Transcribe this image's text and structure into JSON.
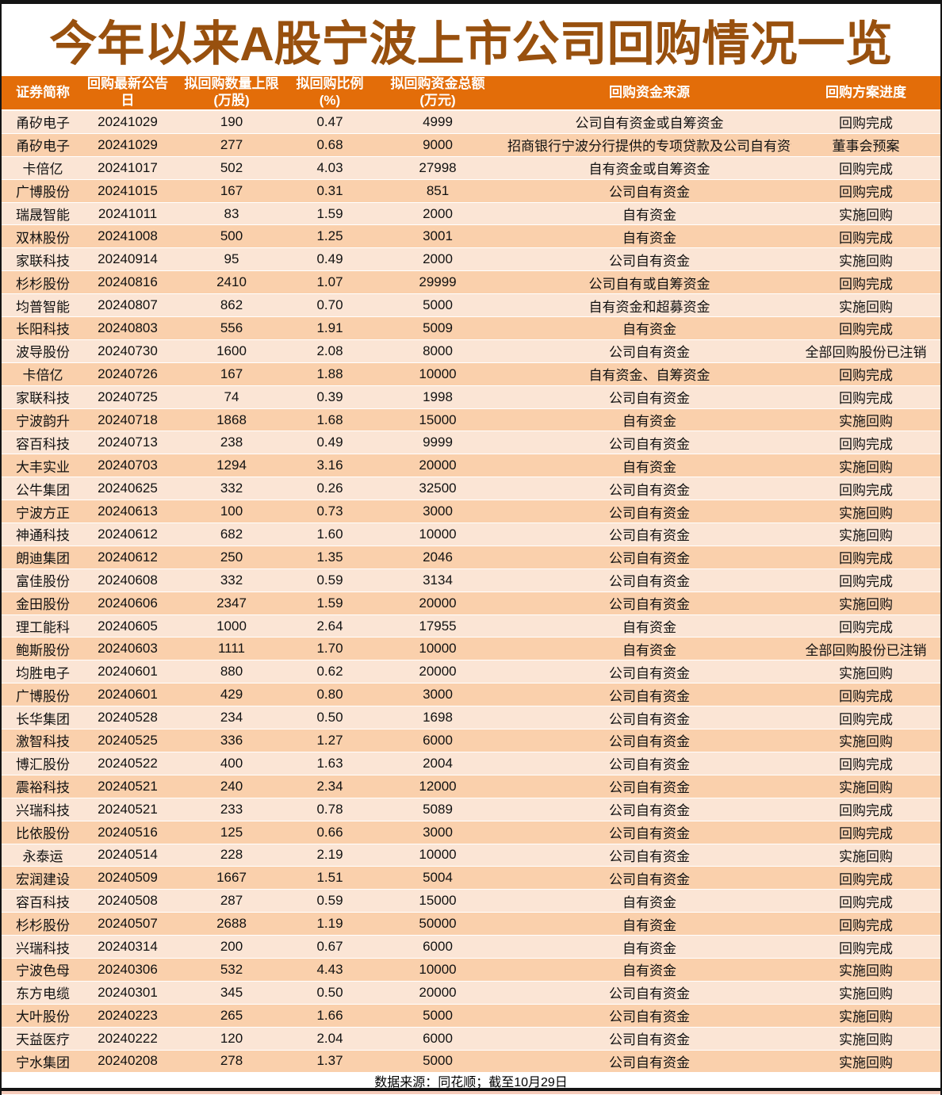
{
  "title": "今年以来A股宁波上市公司回购情况一览",
  "colors": {
    "title_text": "#98500E",
    "header_bg": "#E36D09",
    "header_text": "#FFFFFF",
    "row_light": "#FBE5D5",
    "row_dark": "#FAD0AC",
    "frame": "#141414"
  },
  "chart_data": {
    "type": "table",
    "title": "今年以来A股宁波上市公司回购情况一览",
    "columns": [
      {
        "label": "证券简称",
        "unit": ""
      },
      {
        "label": "回购最新公告日",
        "unit": ""
      },
      {
        "label": "拟回购数量上限",
        "unit": "(万股)"
      },
      {
        "label": "拟回购比例",
        "unit": "(%)"
      },
      {
        "label": "拟回购资金总额",
        "unit": "(万元)"
      },
      {
        "label": "回购资金来源",
        "unit": ""
      },
      {
        "label": "回购方案进度",
        "unit": ""
      }
    ],
    "rows": [
      {
        "name": "甬矽电子",
        "date": "20241029",
        "qty_limit_wan": 190,
        "ratio_pct": "0.47",
        "amount_wan": 4999,
        "source": "公司自有资金或自筹资金",
        "progress": "回购完成"
      },
      {
        "name": "甬矽电子",
        "date": "20241029",
        "qty_limit_wan": 277,
        "ratio_pct": "0.68",
        "amount_wan": 9000,
        "source": "招商银行宁波分行提供的专项贷款及公司自有资金",
        "progress": "董事会预案"
      },
      {
        "name": "卡倍亿",
        "date": "20241017",
        "qty_limit_wan": 502,
        "ratio_pct": "4.03",
        "amount_wan": 27998,
        "source": "自有资金或自筹资金",
        "progress": "回购完成"
      },
      {
        "name": "广博股份",
        "date": "20241015",
        "qty_limit_wan": 167,
        "ratio_pct": "0.31",
        "amount_wan": 851,
        "source": "公司自有资金",
        "progress": "回购完成"
      },
      {
        "name": "瑞晟智能",
        "date": "20241011",
        "qty_limit_wan": 83,
        "ratio_pct": "1.59",
        "amount_wan": 2000,
        "source": "自有资金",
        "progress": "实施回购"
      },
      {
        "name": "双林股份",
        "date": "20241008",
        "qty_limit_wan": 500,
        "ratio_pct": "1.25",
        "amount_wan": 3001,
        "source": "自有资金",
        "progress": "回购完成"
      },
      {
        "name": "家联科技",
        "date": "20240914",
        "qty_limit_wan": 95,
        "ratio_pct": "0.49",
        "amount_wan": 2000,
        "source": "公司自有资金",
        "progress": "实施回购"
      },
      {
        "name": "杉杉股份",
        "date": "20240816",
        "qty_limit_wan": 2410,
        "ratio_pct": "1.07",
        "amount_wan": 29999,
        "source": "公司自有或自筹资金",
        "progress": "回购完成"
      },
      {
        "name": "均普智能",
        "date": "20240807",
        "qty_limit_wan": 862,
        "ratio_pct": "0.70",
        "amount_wan": 5000,
        "source": "自有资金和超募资金",
        "progress": "实施回购"
      },
      {
        "name": "长阳科技",
        "date": "20240803",
        "qty_limit_wan": 556,
        "ratio_pct": "1.91",
        "amount_wan": 5009,
        "source": "自有资金",
        "progress": "回购完成"
      },
      {
        "name": "波导股份",
        "date": "20240730",
        "qty_limit_wan": 1600,
        "ratio_pct": "2.08",
        "amount_wan": 8000,
        "source": "公司自有资金",
        "progress": "全部回购股份已注销"
      },
      {
        "name": "卡倍亿",
        "date": "20240726",
        "qty_limit_wan": 167,
        "ratio_pct": "1.88",
        "amount_wan": 10000,
        "source": "自有资金、自筹资金",
        "progress": "回购完成"
      },
      {
        "name": "家联科技",
        "date": "20240725",
        "qty_limit_wan": 74,
        "ratio_pct": "0.39",
        "amount_wan": 1998,
        "source": "公司自有资金",
        "progress": "回购完成"
      },
      {
        "name": "宁波韵升",
        "date": "20240718",
        "qty_limit_wan": 1868,
        "ratio_pct": "1.68",
        "amount_wan": 15000,
        "source": "自有资金",
        "progress": "实施回购"
      },
      {
        "name": "容百科技",
        "date": "20240713",
        "qty_limit_wan": 238,
        "ratio_pct": "0.49",
        "amount_wan": 9999,
        "source": "公司自有资金",
        "progress": "回购完成"
      },
      {
        "name": "大丰实业",
        "date": "20240703",
        "qty_limit_wan": 1294,
        "ratio_pct": "3.16",
        "amount_wan": 20000,
        "source": "自有资金",
        "progress": "实施回购"
      },
      {
        "name": "公牛集团",
        "date": "20240625",
        "qty_limit_wan": 332,
        "ratio_pct": "0.26",
        "amount_wan": 32500,
        "source": "公司自有资金",
        "progress": "回购完成"
      },
      {
        "name": "宁波方正",
        "date": "20240613",
        "qty_limit_wan": 100,
        "ratio_pct": "0.73",
        "amount_wan": 3000,
        "source": "公司自有资金",
        "progress": "实施回购"
      },
      {
        "name": "神通科技",
        "date": "20240612",
        "qty_limit_wan": 682,
        "ratio_pct": "1.60",
        "amount_wan": 10000,
        "source": "公司自有资金",
        "progress": "实施回购"
      },
      {
        "name": "朗迪集团",
        "date": "20240612",
        "qty_limit_wan": 250,
        "ratio_pct": "1.35",
        "amount_wan": 2046,
        "source": "公司自有资金",
        "progress": "回购完成"
      },
      {
        "name": "富佳股份",
        "date": "20240608",
        "qty_limit_wan": 332,
        "ratio_pct": "0.59",
        "amount_wan": 3134,
        "source": "公司自有资金",
        "progress": "回购完成"
      },
      {
        "name": "金田股份",
        "date": "20240606",
        "qty_limit_wan": 2347,
        "ratio_pct": "1.59",
        "amount_wan": 20000,
        "source": "公司自有资金",
        "progress": "实施回购"
      },
      {
        "name": "理工能科",
        "date": "20240605",
        "qty_limit_wan": 1000,
        "ratio_pct": "2.64",
        "amount_wan": 17955,
        "source": "自有资金",
        "progress": "回购完成"
      },
      {
        "name": "鲍斯股份",
        "date": "20240603",
        "qty_limit_wan": 1111,
        "ratio_pct": "1.70",
        "amount_wan": 10000,
        "source": "自有资金",
        "progress": "全部回购股份已注销"
      },
      {
        "name": "均胜电子",
        "date": "20240601",
        "qty_limit_wan": 880,
        "ratio_pct": "0.62",
        "amount_wan": 20000,
        "source": "公司自有资金",
        "progress": "实施回购"
      },
      {
        "name": "广博股份",
        "date": "20240601",
        "qty_limit_wan": 429,
        "ratio_pct": "0.80",
        "amount_wan": 3000,
        "source": "公司自有资金",
        "progress": "回购完成"
      },
      {
        "name": "长华集团",
        "date": "20240528",
        "qty_limit_wan": 234,
        "ratio_pct": "0.50",
        "amount_wan": 1698,
        "source": "公司自有资金",
        "progress": "回购完成"
      },
      {
        "name": "激智科技",
        "date": "20240525",
        "qty_limit_wan": 336,
        "ratio_pct": "1.27",
        "amount_wan": 6000,
        "source": "公司自有资金",
        "progress": "实施回购"
      },
      {
        "name": "博汇股份",
        "date": "20240522",
        "qty_limit_wan": 400,
        "ratio_pct": "1.63",
        "amount_wan": 2004,
        "source": "公司自有资金",
        "progress": "回购完成"
      },
      {
        "name": "震裕科技",
        "date": "20240521",
        "qty_limit_wan": 240,
        "ratio_pct": "2.34",
        "amount_wan": 12000,
        "source": "公司自有资金",
        "progress": "实施回购"
      },
      {
        "name": "兴瑞科技",
        "date": "20240521",
        "qty_limit_wan": 233,
        "ratio_pct": "0.78",
        "amount_wan": 5089,
        "source": "公司自有资金",
        "progress": "回购完成"
      },
      {
        "name": "比依股份",
        "date": "20240516",
        "qty_limit_wan": 125,
        "ratio_pct": "0.66",
        "amount_wan": 3000,
        "source": "公司自有资金",
        "progress": "回购完成"
      },
      {
        "name": "永泰运",
        "date": "20240514",
        "qty_limit_wan": 228,
        "ratio_pct": "2.19",
        "amount_wan": 10000,
        "source": "公司自有资金",
        "progress": "实施回购"
      },
      {
        "name": "宏润建设",
        "date": "20240509",
        "qty_limit_wan": 1667,
        "ratio_pct": "1.51",
        "amount_wan": 5004,
        "source": "公司自有资金",
        "progress": "回购完成"
      },
      {
        "name": "容百科技",
        "date": "20240508",
        "qty_limit_wan": 287,
        "ratio_pct": "0.59",
        "amount_wan": 15000,
        "source": "自有资金",
        "progress": "回购完成"
      },
      {
        "name": "杉杉股份",
        "date": "20240507",
        "qty_limit_wan": 2688,
        "ratio_pct": "1.19",
        "amount_wan": 50000,
        "source": "自有资金",
        "progress": "回购完成"
      },
      {
        "name": "兴瑞科技",
        "date": "20240314",
        "qty_limit_wan": 200,
        "ratio_pct": "0.67",
        "amount_wan": 6000,
        "source": "自有资金",
        "progress": "回购完成"
      },
      {
        "name": "宁波色母",
        "date": "20240306",
        "qty_limit_wan": 532,
        "ratio_pct": "4.43",
        "amount_wan": 10000,
        "source": "自有资金",
        "progress": "实施回购"
      },
      {
        "name": "东方电缆",
        "date": "20240301",
        "qty_limit_wan": 345,
        "ratio_pct": "0.50",
        "amount_wan": 20000,
        "source": "公司自有资金",
        "progress": "实施回购"
      },
      {
        "name": "大叶股份",
        "date": "20240223",
        "qty_limit_wan": 265,
        "ratio_pct": "1.66",
        "amount_wan": 5000,
        "source": "公司自有资金",
        "progress": "实施回购"
      },
      {
        "name": "天益医疗",
        "date": "20240222",
        "qty_limit_wan": 120,
        "ratio_pct": "2.04",
        "amount_wan": 6000,
        "source": "公司自有资金",
        "progress": "实施回购"
      },
      {
        "name": "宁水集团",
        "date": "20240208",
        "qty_limit_wan": 278,
        "ratio_pct": "1.37",
        "amount_wan": 5000,
        "source": "公司自有资金",
        "progress": "实施回购"
      }
    ]
  },
  "footer": {
    "note": "数据来源：同花顺；截至10月29日"
  }
}
